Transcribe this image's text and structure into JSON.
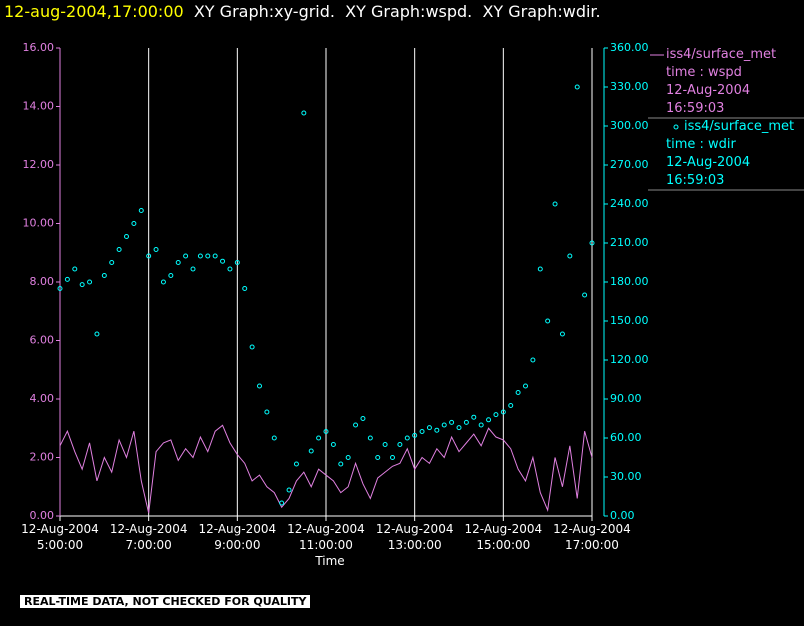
{
  "title_time": "12-aug-2004,17:00:00",
  "title_text": "XY Graph:xy-grid.  XY Graph:wspd.  XY Graph:wdir.",
  "footer": "REAL-TIME DATA, NOT CHECKED FOR QUALITY",
  "chart_data": {
    "type": "line-scatter",
    "xlabel": "Time",
    "grid": true,
    "xlim": [
      "12-Aug-2004 05:00",
      "12-Aug-2004 17:00"
    ],
    "xticks": [
      {
        "value": "12-Aug-2004 05:00",
        "label": "12-Aug-2004\n5:00:00"
      },
      {
        "value": "12-Aug-2004 07:00",
        "label": "12-Aug-2004\n7:00:00"
      },
      {
        "value": "12-Aug-2004 09:00",
        "label": "12-Aug-2004\n9:00:00"
      },
      {
        "value": "12-Aug-2004 11:00",
        "label": "12-Aug-2004\n11:00:00"
      },
      {
        "value": "12-Aug-2004 13:00",
        "label": "12-Aug-2004\n13:00:00"
      },
      {
        "value": "12-Aug-2004 15:00",
        "label": "12-Aug-2004\n15:00:00"
      },
      {
        "value": "12-Aug-2004 17:00",
        "label": "12-Aug-2004\n17:00:00"
      }
    ],
    "ylim": [
      0,
      16
    ],
    "yticks": [
      {
        "value": 0,
        "label": "0.00"
      },
      {
        "value": 2,
        "label": "2.00"
      },
      {
        "value": 4,
        "label": "4.00"
      },
      {
        "value": 6,
        "label": "6.00"
      },
      {
        "value": 8,
        "label": "8.00"
      },
      {
        "value": 10,
        "label": "10.00"
      },
      {
        "value": 12,
        "label": "12.00"
      },
      {
        "value": 14,
        "label": "14.00"
      },
      {
        "value": 16,
        "label": "16.00"
      }
    ],
    "y2lim": [
      0,
      360
    ],
    "y2ticks": [
      {
        "value": 0,
        "label": "0.00"
      },
      {
        "value": 30,
        "label": "30.00"
      },
      {
        "value": 60,
        "label": "60.00"
      },
      {
        "value": 90,
        "label": "90.00"
      },
      {
        "value": 120,
        "label": "120.00"
      },
      {
        "value": 150,
        "label": "150.00"
      },
      {
        "value": 180,
        "label": "180.00"
      },
      {
        "value": 210,
        "label": "210.00"
      },
      {
        "value": 240,
        "label": "240.00"
      },
      {
        "value": 270,
        "label": "270.00"
      },
      {
        "value": 300,
        "label": "300.00"
      },
      {
        "value": 330,
        "label": "330.00"
      },
      {
        "value": 360,
        "label": "360.00"
      }
    ],
    "x": [
      "12-Aug-2004 05:00",
      "12-Aug-2004 05:10",
      "12-Aug-2004 05:20",
      "12-Aug-2004 05:30",
      "12-Aug-2004 05:40",
      "12-Aug-2004 05:50",
      "12-Aug-2004 06:00",
      "12-Aug-2004 06:10",
      "12-Aug-2004 06:20",
      "12-Aug-2004 06:30",
      "12-Aug-2004 06:40",
      "12-Aug-2004 06:50",
      "12-Aug-2004 07:00",
      "12-Aug-2004 07:10",
      "12-Aug-2004 07:20",
      "12-Aug-2004 07:30",
      "12-Aug-2004 07:40",
      "12-Aug-2004 07:50",
      "12-Aug-2004 08:00",
      "12-Aug-2004 08:10",
      "12-Aug-2004 08:20",
      "12-Aug-2004 08:30",
      "12-Aug-2004 08:40",
      "12-Aug-2004 08:50",
      "12-Aug-2004 09:00",
      "12-Aug-2004 09:10",
      "12-Aug-2004 09:20",
      "12-Aug-2004 09:30",
      "12-Aug-2004 09:40",
      "12-Aug-2004 09:50",
      "12-Aug-2004 10:00",
      "12-Aug-2004 10:10",
      "12-Aug-2004 10:20",
      "12-Aug-2004 10:30",
      "12-Aug-2004 10:40",
      "12-Aug-2004 10:50",
      "12-Aug-2004 11:00",
      "12-Aug-2004 11:10",
      "12-Aug-2004 11:20",
      "12-Aug-2004 11:30",
      "12-Aug-2004 11:40",
      "12-Aug-2004 11:50",
      "12-Aug-2004 12:00",
      "12-Aug-2004 12:10",
      "12-Aug-2004 12:20",
      "12-Aug-2004 12:30",
      "12-Aug-2004 12:40",
      "12-Aug-2004 12:50",
      "12-Aug-2004 13:00",
      "12-Aug-2004 13:10",
      "12-Aug-2004 13:20",
      "12-Aug-2004 13:30",
      "12-Aug-2004 13:40",
      "12-Aug-2004 13:50",
      "12-Aug-2004 14:00",
      "12-Aug-2004 14:10",
      "12-Aug-2004 14:20",
      "12-Aug-2004 14:30",
      "12-Aug-2004 14:40",
      "12-Aug-2004 14:50",
      "12-Aug-2004 15:00",
      "12-Aug-2004 15:10",
      "12-Aug-2004 15:20",
      "12-Aug-2004 15:30",
      "12-Aug-2004 15:40",
      "12-Aug-2004 15:50",
      "12-Aug-2004 16:00",
      "12-Aug-2004 16:10",
      "12-Aug-2004 16:20",
      "12-Aug-2004 16:30",
      "12-Aug-2004 16:40",
      "12-Aug-2004 16:50",
      "12-Aug-2004 17:00"
    ],
    "series": [
      {
        "name": "iss4/surface_met",
        "legend_lines": [
          "time : wspd",
          "12-Aug-2004",
          "16:59:03"
        ],
        "color": "#e080e0",
        "mark": "line",
        "values": [
          2.4,
          2.9,
          2.2,
          1.6,
          2.5,
          1.2,
          2.0,
          1.5,
          2.6,
          2.0,
          2.9,
          1.2,
          0.1,
          2.2,
          2.5,
          2.6,
          1.9,
          2.3,
          2.0,
          2.7,
          2.2,
          2.9,
          3.1,
          2.5,
          2.1,
          1.8,
          1.2,
          1.4,
          1.0,
          0.8,
          0.3,
          0.6,
          1.2,
          1.5,
          1.0,
          1.6,
          1.4,
          1.2,
          0.8,
          1.0,
          1.8,
          1.1,
          0.6,
          1.3,
          1.5,
          1.7,
          1.8,
          2.3,
          1.6,
          2.0,
          1.8,
          2.3,
          2.0,
          2.7,
          2.2,
          2.5,
          2.8,
          2.4,
          3.0,
          2.7,
          2.6,
          2.3,
          1.6,
          1.2,
          2.0,
          0.8,
          0.2,
          2.0,
          1.0,
          2.4,
          0.6,
          2.9,
          2.0
        ]
      },
      {
        "name": "iss4/surface_met",
        "legend_lines": [
          "time : wdir",
          "12-Aug-2004",
          "16:59:03"
        ],
        "color": "#00ffff",
        "mark": "circle",
        "axis": "y2",
        "values": [
          175,
          182,
          190,
          178,
          180,
          140,
          185,
          195,
          205,
          215,
          225,
          235,
          200,
          205,
          180,
          185,
          195,
          200,
          190,
          200,
          200,
          200,
          196,
          190,
          195,
          175,
          130,
          100,
          80,
          60,
          10,
          20,
          40,
          310,
          50,
          60,
          65,
          55,
          40,
          45,
          70,
          75,
          60,
          45,
          55,
          45,
          55,
          60,
          62,
          65,
          68,
          66,
          70,
          72,
          68,
          72,
          76,
          70,
          74,
          78,
          80,
          85,
          95,
          100,
          120,
          190,
          150,
          240,
          140,
          200,
          330,
          170,
          210
        ]
      }
    ]
  }
}
